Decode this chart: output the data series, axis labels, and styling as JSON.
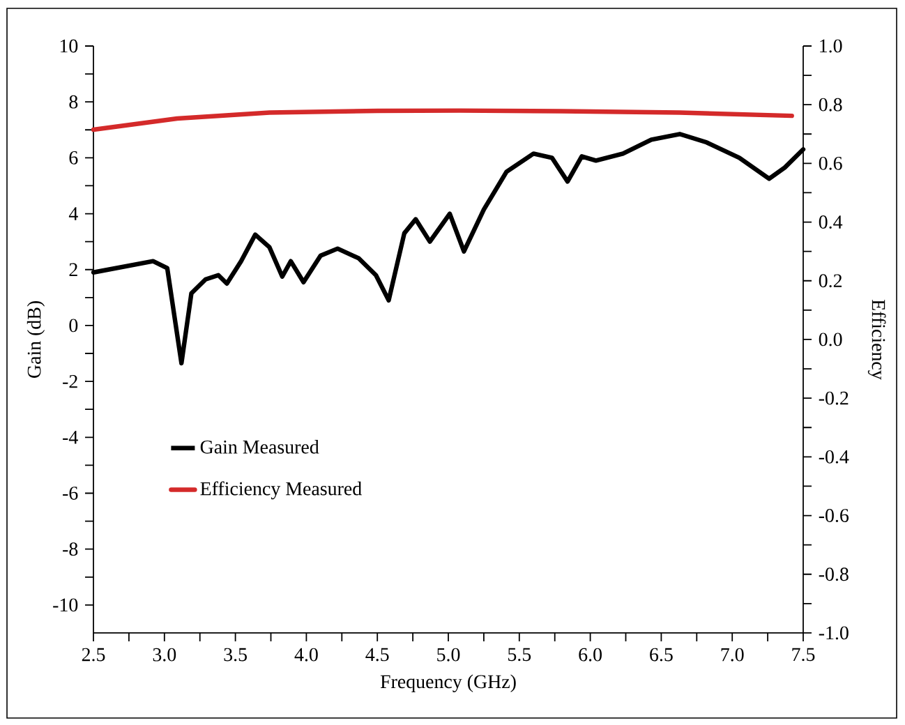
{
  "chart_data": {
    "type": "line",
    "xlabel": "Frequency (GHz)",
    "ylabel": "Gain (dB)",
    "y2label": "Efficiency",
    "xlim": [
      2.5,
      7.5
    ],
    "ylim": [
      -11,
      10
    ],
    "y2lim": [
      -1,
      1
    ],
    "xticks": [
      {
        "value": 2.5,
        "label": "2.5"
      },
      {
        "value": 2.75,
        "label": null
      },
      {
        "value": 3,
        "label": "3.0"
      },
      {
        "value": 3.25,
        "label": null
      },
      {
        "value": 3.5,
        "label": "3.5"
      },
      {
        "value": 3.75,
        "label": null
      },
      {
        "value": 4,
        "label": "4.0"
      },
      {
        "value": 4.25,
        "label": null
      },
      {
        "value": 4.5,
        "label": "4.5"
      },
      {
        "value": 4.75,
        "label": null
      },
      {
        "value": 5,
        "label": "5.0"
      },
      {
        "value": 5.25,
        "label": null
      },
      {
        "value": 5.5,
        "label": "5.5"
      },
      {
        "value": 5.75,
        "label": null
      },
      {
        "value": 6,
        "label": "6.0"
      },
      {
        "value": 6.25,
        "label": null
      },
      {
        "value": 6.5,
        "label": "6.5"
      },
      {
        "value": 6.75,
        "label": null
      },
      {
        "value": 7,
        "label": "7.0"
      },
      {
        "value": 7.25,
        "label": null
      },
      {
        "value": 7.5,
        "label": "7.5"
      }
    ],
    "yticks": [
      -10,
      {
        "value": -9,
        "label": null
      },
      -8,
      {
        "value": -7,
        "label": null
      },
      -6,
      {
        "value": -5,
        "label": null
      },
      -4,
      {
        "value": -3,
        "label": null
      },
      -2,
      {
        "value": -1,
        "label": null
      },
      0,
      {
        "value": 1,
        "label": null
      },
      2,
      {
        "value": 3,
        "label": null
      },
      4,
      {
        "value": 5,
        "label": null
      },
      6,
      {
        "value": 7,
        "label": null
      },
      8,
      {
        "value": 9,
        "label": null
      },
      10
    ],
    "y2ticks": [
      {
        "value": -1,
        "label": "-1.0"
      },
      {
        "value": -0.9,
        "label": null
      },
      {
        "value": -0.8,
        "label": "-0.8"
      },
      {
        "value": -0.7,
        "label": null
      },
      {
        "value": -0.6,
        "label": "-0.6"
      },
      {
        "value": -0.5,
        "label": null
      },
      {
        "value": -0.4,
        "label": "-0.4"
      },
      {
        "value": -0.3,
        "label": null
      },
      {
        "value": -0.2,
        "label": "-0.2"
      },
      {
        "value": -0.1,
        "label": null
      },
      {
        "value": 0,
        "label": "0.0"
      },
      {
        "value": 0.1,
        "label": null
      },
      {
        "value": 0.2,
        "label": "0.2"
      },
      {
        "value": 0.3,
        "label": null
      },
      {
        "value": 0.4,
        "label": "0.4"
      },
      {
        "value": 0.5,
        "label": null
      },
      {
        "value": 0.6,
        "label": "0.6"
      },
      {
        "value": 0.7,
        "label": null
      },
      {
        "value": 0.8,
        "label": "0.8"
      },
      {
        "value": 0.9,
        "label": null
      },
      {
        "value": 1,
        "label": "1.0"
      }
    ],
    "legend": "bottom left",
    "grid": false,
    "marker": "none",
    "series": [
      {
        "name": "Gain Measured",
        "color": "#000000",
        "x": [
          2.5,
          2.92,
          3.02,
          3.12,
          3.19,
          3.29,
          3.38,
          3.44,
          3.54,
          3.64,
          3.74,
          3.83,
          3.89,
          3.98,
          4.1,
          4.22,
          4.37,
          4.49,
          4.58,
          4.69,
          4.77,
          4.87,
          5.01,
          5.11,
          5.25,
          5.41,
          5.6,
          5.73,
          5.84,
          5.94,
          6.04,
          6.23,
          6.43,
          6.63,
          6.82,
          7.05,
          7.26,
          7.37,
          7.5
        ],
        "values": [
          1.9,
          2.3,
          2.05,
          -1.35,
          1.15,
          1.65,
          1.8,
          1.5,
          2.3,
          3.25,
          2.8,
          1.75,
          2.3,
          1.55,
          2.5,
          2.75,
          2.4,
          1.8,
          0.9,
          3.3,
          3.8,
          3.0,
          4.0,
          2.65,
          4.15,
          5.5,
          6.15,
          6.0,
          5.15,
          6.05,
          5.9,
          6.15,
          6.65,
          6.85,
          6.55,
          6.0,
          5.25,
          5.65,
          6.3
        ]
      },
      {
        "name": "Efficiency Measured",
        "color": "#d42a2a",
        "axis": "y2",
        "x": [
          2.5,
          3.09,
          3.74,
          4.5,
          5.08,
          5.8,
          6.63,
          7.42
        ],
        "values": [
          0.715,
          0.753,
          0.773,
          0.779,
          0.78,
          0.778,
          0.773,
          0.762
        ]
      }
    ]
  }
}
